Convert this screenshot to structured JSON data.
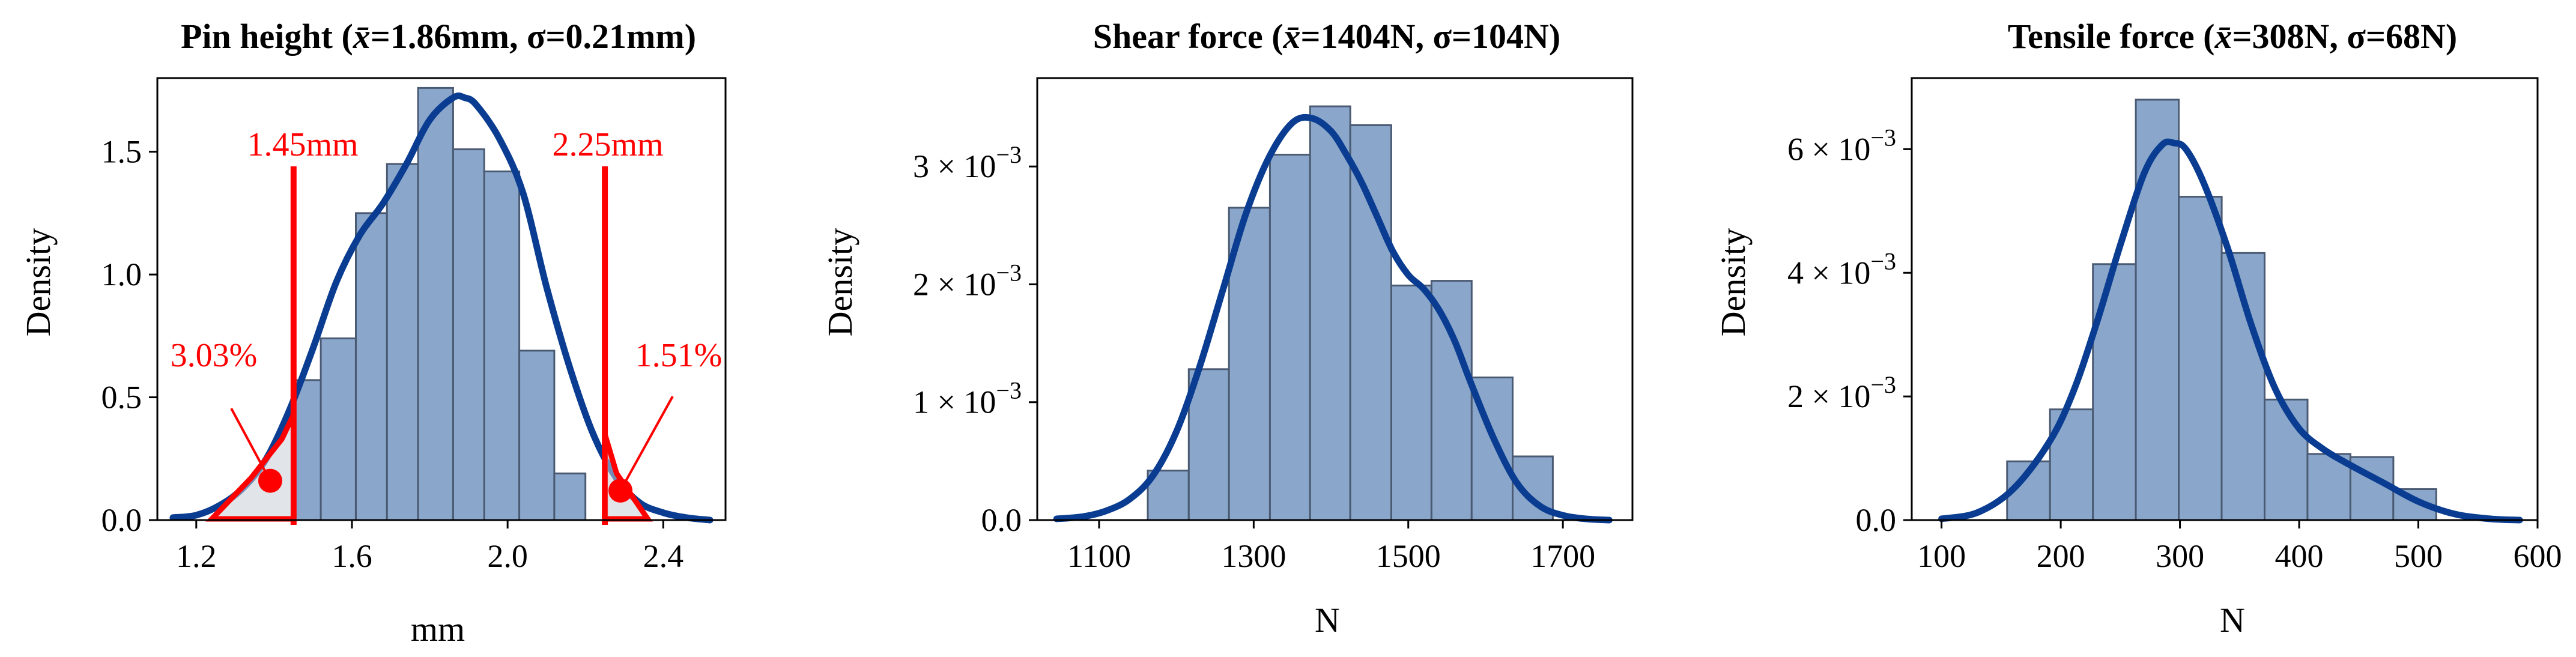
{
  "chart_data": [
    {
      "type": "bar",
      "title": "Pin height (x̄=1.86mm, σ=0.21mm)",
      "title_parts": {
        "a": "Pin height (",
        "xbar": "x̄",
        "b": "=1.86mm, σ=0.21mm)"
      },
      "xlabel": "mm",
      "ylabel": "Density",
      "xlim": [
        1.1,
        2.56
      ],
      "ylim": [
        0,
        1.8
      ],
      "xticks": [
        1.2,
        1.6,
        2.0,
        2.4
      ],
      "xtick_labels": [
        "1.2",
        "1.6",
        "2.0",
        "2.4"
      ],
      "yticks": [
        0.0,
        0.5,
        1.0,
        1.5
      ],
      "ytick_labels": [
        "0.0",
        "0.5",
        "1.0",
        "1.5"
      ],
      "bin_edges": [
        1.45,
        1.52,
        1.61,
        1.69,
        1.77,
        1.86,
        1.94,
        2.03,
        2.12,
        2.2,
        2.29
      ],
      "values": [
        0.57,
        0.74,
        1.25,
        1.45,
        1.76,
        1.51,
        1.42,
        0.69,
        0.19,
        0.0
      ],
      "kde": {
        "x": [
          1.14,
          1.2,
          1.26,
          1.32,
          1.38,
          1.44,
          1.5,
          1.56,
          1.62,
          1.68,
          1.74,
          1.8,
          1.86,
          1.89,
          1.92,
          1.98,
          2.04,
          2.1,
          2.16,
          2.22,
          2.28,
          2.34,
          2.4,
          2.46,
          2.52
        ],
        "y": [
          0.01,
          0.02,
          0.06,
          0.13,
          0.25,
          0.45,
          0.7,
          0.97,
          1.16,
          1.29,
          1.45,
          1.63,
          1.72,
          1.72,
          1.69,
          1.55,
          1.33,
          0.95,
          0.62,
          0.35,
          0.17,
          0.07,
          0.03,
          0.01,
          0.0
        ]
      },
      "annotations": {
        "lower_limit": {
          "x": 1.45,
          "label": "1.45mm"
        },
        "upper_limit": {
          "x": 2.25,
          "label": "2.25mm"
        },
        "lower_tail_pct": "3.03%",
        "upper_tail_pct": "1.51%"
      },
      "colors": {
        "bars": "#8aa7cb",
        "bar_edge": "#4a5a72",
        "kde": "#0a3d91",
        "annotation": "#ff0000"
      }
    },
    {
      "type": "bar",
      "title": "Shear force (x̄=1404N, σ=104N)",
      "title_parts": {
        "a": "Shear force (",
        "xbar": "x̄",
        "b": "=1404N, σ=104N)"
      },
      "xlabel": "N",
      "ylabel": "Density",
      "xlim": [
        1020,
        1790
      ],
      "ylim": [
        0,
        0.00375
      ],
      "xticks": [
        1100,
        1300,
        1500,
        1700
      ],
      "xtick_labels": [
        "1100",
        "1300",
        "1500",
        "1700"
      ],
      "yticks": [
        0,
        0.001,
        0.002,
        0.003
      ],
      "ytick_labels": [
        {
          "plain": "0.0"
        },
        {
          "mant": "1 × 10",
          "exp": "−3"
        },
        {
          "mant": "2 × 10",
          "exp": "−3"
        },
        {
          "mant": "3 × 10",
          "exp": "−3"
        }
      ],
      "bin_edges": [
        1163,
        1216,
        1268,
        1321,
        1373,
        1425,
        1478,
        1530,
        1582,
        1635,
        1687
      ],
      "values": [
        0.00042,
        0.00128,
        0.00265,
        0.0031,
        0.00351,
        0.00335,
        0.00199,
        0.00203,
        0.00121,
        0.00054
      ],
      "kde": {
        "x": [
          1045,
          1080,
          1110,
          1140,
          1170,
          1200,
          1230,
          1260,
          1290,
          1320,
          1350,
          1375,
          1400,
          1420,
          1440,
          1460,
          1480,
          1500,
          1520,
          1540,
          1560,
          1580,
          1610,
          1640,
          1670,
          1700,
          1730,
          1760
        ],
        "y": [
          1e-05,
          3e-05,
          8e-05,
          0.00018,
          0.00038,
          0.00075,
          0.0013,
          0.00195,
          0.0026,
          0.00308,
          0.00337,
          0.00341,
          0.0033,
          0.0031,
          0.00286,
          0.00257,
          0.00228,
          0.00208,
          0.00196,
          0.00178,
          0.00152,
          0.00118,
          0.0007,
          0.00032,
          0.00012,
          4e-05,
          1e-05,
          0.0
        ]
      },
      "colors": {
        "bars": "#8aa7cb",
        "bar_edge": "#4a5a72",
        "kde": "#0a3d91"
      }
    },
    {
      "type": "bar",
      "title": "Tensile force (x̄=308N, σ=68N)",
      "title_parts": {
        "a": "Tensile force (",
        "xbar": "x̄",
        "b": "=308N, σ=68N)"
      },
      "xlabel": "N",
      "ylabel": "Density",
      "xlim": [
        75,
        600
      ],
      "ylim": [
        0,
        0.00715
      ],
      "xticks": [
        100,
        200,
        300,
        400,
        500,
        600
      ],
      "xtick_labels": [
        "100",
        "200",
        "300",
        "400",
        "500",
        "600"
      ],
      "yticks": [
        0,
        0.002,
        0.004,
        0.006
      ],
      "ytick_labels": [
        {
          "plain": "0.0"
        },
        {
          "mant": "2 × 10",
          "exp": "−3"
        },
        {
          "mant": "4 × 10",
          "exp": "−3"
        },
        {
          "mant": "6 × 10",
          "exp": "−3"
        }
      ],
      "bin_edges": [
        155,
        191,
        227,
        263,
        299,
        335,
        371,
        407,
        443,
        479,
        515
      ],
      "values": [
        0.00095,
        0.00179,
        0.00414,
        0.0068,
        0.00523,
        0.00432,
        0.00195,
        0.00107,
        0.00102,
        0.0005
      ],
      "kde": {
        "x": [
          100,
          130,
          160,
          190,
          210,
          230,
          250,
          270,
          285,
          295,
          305,
          320,
          340,
          360,
          380,
          400,
          420,
          440,
          470,
          500,
          530,
          560,
          585
        ],
        "y": [
          2e-05,
          0.00012,
          0.0005,
          0.00125,
          0.00205,
          0.00318,
          0.00445,
          0.00561,
          0.00607,
          0.0061,
          0.006,
          0.00545,
          0.0044,
          0.00315,
          0.00212,
          0.00148,
          0.00115,
          0.00092,
          0.00061,
          0.0003,
          0.0001,
          2e-05,
          0.0
        ]
      },
      "colors": {
        "bars": "#8aa7cb",
        "bar_edge": "#4a5a72",
        "kde": "#0a3d91"
      }
    }
  ]
}
